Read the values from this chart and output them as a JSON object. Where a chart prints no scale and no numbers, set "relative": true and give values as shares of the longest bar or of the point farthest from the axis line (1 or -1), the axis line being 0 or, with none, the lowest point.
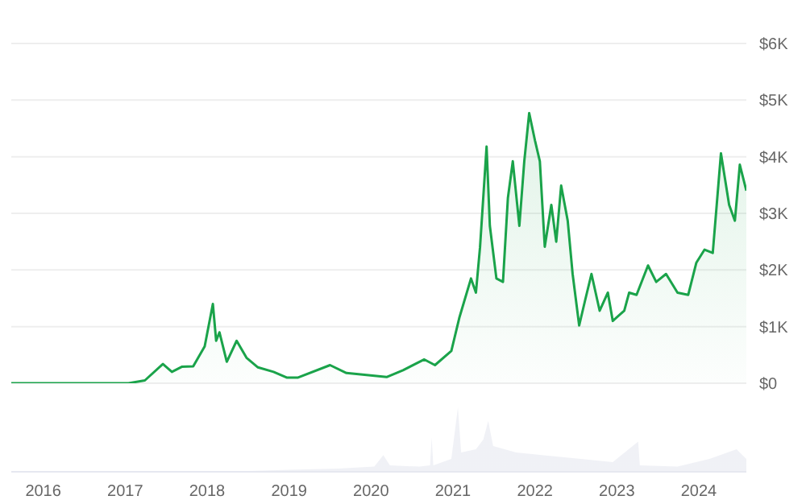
{
  "chart_data": [
    {
      "type": "area",
      "x": [
        2015.61,
        2016.65,
        2017.04,
        2017.24,
        2017.46,
        2017.57,
        2017.69,
        2017.83,
        2017.97,
        2018.07,
        2018.11,
        2018.15,
        2018.24,
        2018.36,
        2018.48,
        2018.62,
        2018.81,
        2018.97,
        2019.11,
        2019.5,
        2019.7,
        2020.19,
        2020.39,
        2020.65,
        2020.78,
        2020.98,
        2021.08,
        2021.22,
        2021.28,
        2021.33,
        2021.41,
        2021.45,
        2021.53,
        2021.61,
        2021.67,
        2021.73,
        2021.81,
        2021.87,
        2021.93,
        2022.0,
        2022.06,
        2022.12,
        2022.2,
        2022.26,
        2022.32,
        2022.4,
        2022.46,
        2022.54,
        2022.61,
        2022.69,
        2022.79,
        2022.89,
        2022.95,
        2023.09,
        2023.15,
        2023.24,
        2023.38,
        2023.48,
        2023.6,
        2023.74,
        2023.87,
        2023.97,
        2024.07,
        2024.17,
        2024.27,
        2024.37,
        2024.44,
        2024.5,
        2024.58
      ],
      "series": [
        {
          "color": "#1aa34a",
          "values": [
            0,
            0,
            0,
            50,
            340,
            200,
            290,
            300,
            650,
            1400,
            750,
            900,
            380,
            750,
            450,
            280,
            200,
            100,
            100,
            320,
            180,
            110,
            230,
            420,
            320,
            570,
            1170,
            1850,
            1600,
            2400,
            4180,
            2780,
            1850,
            1790,
            3270,
            3920,
            2780,
            3920,
            4770,
            4290,
            3920,
            2410,
            3150,
            2500,
            3490,
            2870,
            1930,
            1020,
            1450,
            1930,
            1280,
            1600,
            1100,
            1280,
            1600,
            1560,
            2080,
            1790,
            1930,
            1600,
            1560,
            2130,
            2360,
            2300,
            4060,
            3150,
            2870,
            3860,
            3400
          ]
        }
      ],
      "xlim": [
        2015.61,
        2024.58
      ],
      "ylim": [
        0,
        6000
      ],
      "yticks": [
        {
          "value": 0,
          "label": "$0"
        },
        {
          "value": 1000,
          "label": "$1K"
        },
        {
          "value": 2000,
          "label": "$2K"
        },
        {
          "value": 3000,
          "label": "$3K"
        },
        {
          "value": 4000,
          "label": "$4K"
        },
        {
          "value": 5000,
          "label": "$5K"
        },
        {
          "value": 6000,
          "label": "$6K"
        }
      ],
      "grid": "y",
      "tick_labels": "y"
    },
    {
      "type": "area",
      "relative": true,
      "x": [
        2015.61,
        2018.42,
        2019.01,
        2019.6,
        2020.04,
        2020.15,
        2020.23,
        2020.59,
        2020.72,
        2020.74,
        2020.76,
        2020.98,
        2021.06,
        2021.1,
        2021.28,
        2021.37,
        2021.43,
        2021.49,
        2021.77,
        2022.16,
        2022.56,
        2022.95,
        2023.26,
        2023.28,
        2023.74,
        2024.13,
        2024.46,
        2024.58
      ],
      "series": [
        {
          "color": "#e6e8f0",
          "values": [
            0,
            0.01,
            0.03,
            0.05,
            0.08,
            0.26,
            0.1,
            0.08,
            0.1,
            0.53,
            0.1,
            0.2,
            1,
            0.3,
            0.35,
            0.5,
            0.79,
            0.4,
            0.3,
            0.25,
            0.2,
            0.15,
            0.47,
            0.1,
            0.08,
            0.2,
            0.35,
            0.2
          ]
        }
      ],
      "xlim": [
        2015.61,
        2024.58
      ],
      "xticks": [
        2016,
        2017,
        2018,
        2019,
        2020,
        2021,
        2022,
        2023,
        2024
      ],
      "tick_labels": "x"
    }
  ]
}
